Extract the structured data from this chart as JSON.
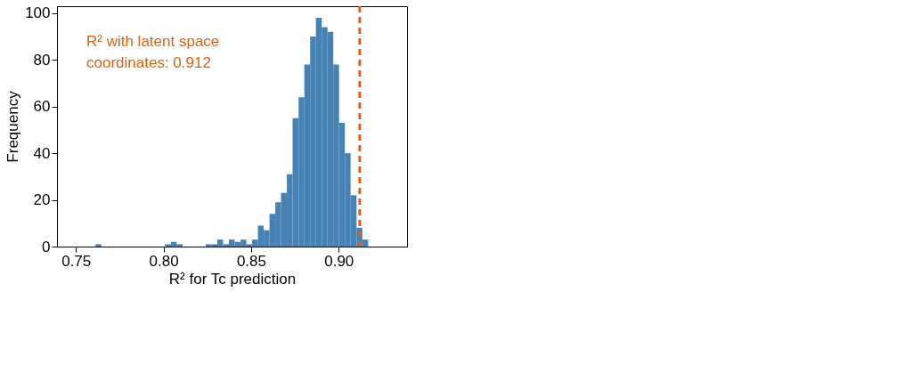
{
  "chart_data": {
    "type": "histogram",
    "xlabel": "R² for Tc prediction",
    "ylabel": "Frequency",
    "bins": [
      0.7612,
      0.7645,
      0.7678,
      0.7711,
      0.7744,
      0.7778,
      0.7811,
      0.7844,
      0.7877,
      0.791,
      0.7943,
      0.7976,
      0.8009,
      0.8042,
      0.8075,
      0.8109,
      0.8142,
      0.8175,
      0.8208,
      0.8241,
      0.8274,
      0.8307,
      0.834,
      0.8373,
      0.8406,
      0.844,
      0.8473,
      0.8506,
      0.8539,
      0.8572,
      0.8605,
      0.8638,
      0.8671,
      0.8704,
      0.8737,
      0.8771,
      0.8804,
      0.8837,
      0.887,
      0.8903,
      0.8936,
      0.8969,
      0.9002,
      0.9035,
      0.9068,
      0.9102,
      0.9135,
      0.9168
    ],
    "values": [
      1,
      0,
      0,
      0,
      0,
      0,
      0,
      0,
      0,
      0,
      0,
      0,
      1,
      2,
      1,
      0,
      0,
      0,
      0,
      1,
      1,
      3,
      1,
      3,
      2,
      3,
      1,
      3,
      9,
      7,
      14,
      19,
      23,
      31,
      55,
      64,
      78,
      90,
      98,
      94,
      92,
      78,
      53,
      40,
      22,
      8,
      3
    ],
    "color": "#4682b4",
    "xlim": [
      0.7392,
      0.939
    ],
    "ylim": [
      0,
      103
    ],
    "xticks": [
      {
        "value": 0.75,
        "label": "0.75"
      },
      {
        "value": 0.8,
        "label": "0.80"
      },
      {
        "value": 0.85,
        "label": "0.85"
      },
      {
        "value": 0.9,
        "label": "0.90"
      }
    ],
    "yticks": [
      0,
      20,
      40,
      60,
      80,
      100
    ],
    "ref_lines": [
      {
        "axis": "x",
        "value": 0.912,
        "label": "R² with latent space\ncoordinates: 0.912",
        "color": "#e0600f",
        "line_style": "dashed"
      }
    ],
    "grid": false
  }
}
